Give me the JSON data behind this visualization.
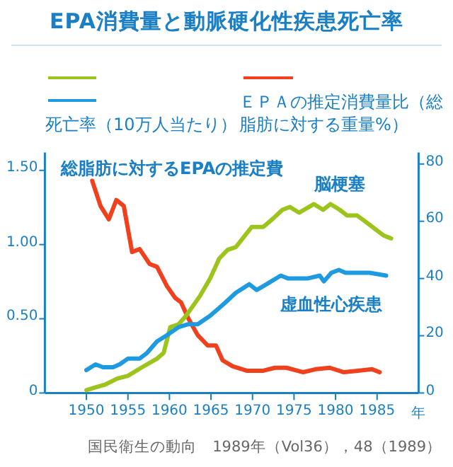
{
  "chart_data": {
    "type": "line",
    "title": "EPA消費量と動脈硬化性疾患死亡率",
    "xlabel": "年",
    "xlim": [
      1945,
      1990
    ],
    "xticks": [
      1950,
      1955,
      1960,
      1965,
      1970,
      1975,
      1980,
      1985
    ],
    "ylim": [
      0,
      1.62
    ],
    "yticks": [
      0,
      {
        "value": 0.5,
        "label": "0.50"
      },
      {
        "value": 1,
        "label": "1.00"
      },
      {
        "value": 1.5,
        "label": "1.50"
      }
    ],
    "y2lim": [
      0,
      84
    ],
    "y2ticks": [
      0,
      20,
      40,
      60,
      80
    ],
    "series": [
      {
        "name": "総脂肪に対するEPAの推定費",
        "color": "#f0401e",
        "axis": "y",
        "x": [
          1950.7,
          1951.7,
          1952.7,
          1953.6,
          1954.5,
          1955.5,
          1956.4,
          1957.6,
          1958.5,
          1959.7,
          1960.7,
          1961.4,
          1962.3,
          1963.4,
          1964.6,
          1965.6,
          1966.4,
          1967.6,
          1969.3,
          1971.3,
          1972.7,
          1974.1,
          1976.1,
          1977.6,
          1979.3,
          1981,
          1982.7,
          1984.4,
          1985.3
        ],
        "values": [
          1.43,
          1.26,
          1.17,
          1.3,
          1.26,
          0.95,
          0.97,
          0.87,
          0.85,
          0.72,
          0.64,
          0.61,
          0.5,
          0.39,
          0.32,
          0.32,
          0.22,
          0.18,
          0.15,
          0.15,
          0.17,
          0.17,
          0.14,
          0.16,
          0.17,
          0.14,
          0.15,
          0.16,
          0.14
        ]
      },
      {
        "name": "脳梗塞",
        "color": "#9dc41d",
        "axis": "y2",
        "x": [
          1950,
          1951.1,
          1952.3,
          1953.7,
          1955,
          1956.7,
          1958.5,
          1959.3,
          1960.1,
          1961.1,
          1962,
          1963.7,
          1964.9,
          1966,
          1967,
          1968,
          1969.9,
          1971.3,
          1972.5,
          1973.6,
          1974.5,
          1975.6,
          1977.4,
          1978.5,
          1979.4,
          1980.5,
          1981.4,
          1982.6,
          1984,
          1984.9,
          1985.8,
          1986.7
        ],
        "values": [
          1,
          2,
          3,
          5,
          6,
          9,
          12,
          14,
          23,
          24,
          27,
          34,
          40,
          47,
          50,
          51,
          58,
          58,
          61,
          64,
          65,
          63,
          66,
          64,
          66,
          64,
          62,
          62,
          59,
          57,
          55,
          54
        ]
      },
      {
        "name": "虚血性心疾患",
        "color": "#1e9be0",
        "axis": "y2",
        "x": [
          1950,
          1951.1,
          1952,
          1953.2,
          1954,
          1955,
          1956.4,
          1957.3,
          1958.5,
          1959.6,
          1961.1,
          1962.2,
          1963.4,
          1964.9,
          1966.5,
          1968,
          1969.6,
          1970.5,
          1971.7,
          1973.4,
          1974.3,
          1976.6,
          1978.1,
          1978.6,
          1979.5,
          1980.4,
          1981.2,
          1982.4,
          1984.1,
          1986.1
        ],
        "values": [
          8,
          10,
          9,
          9,
          10,
          12,
          12,
          14,
          18,
          20,
          23,
          24,
          24,
          27,
          31,
          35,
          38,
          36,
          38,
          41,
          40,
          40,
          41,
          39,
          42,
          43,
          42,
          42,
          42,
          41
        ]
      }
    ],
    "annotations": [
      "死亡率（10万人当たり）",
      "ＥＰＡの推定消費量比（総脂肪に対する重量%）",
      "国民衛生の動向　1989年（Vol36），48（1989）"
    ]
  }
}
